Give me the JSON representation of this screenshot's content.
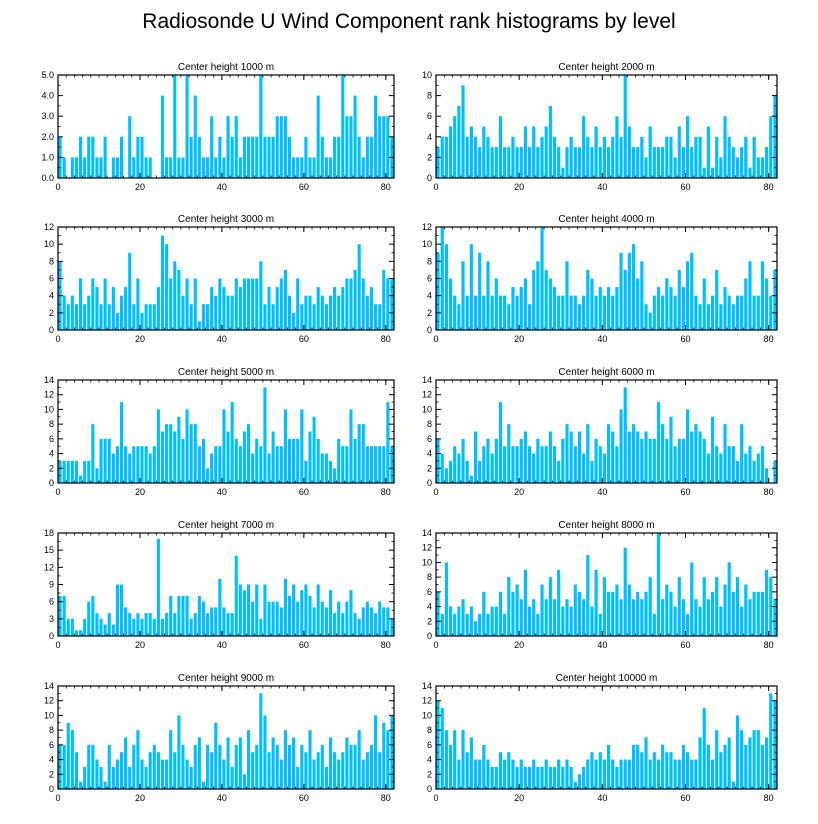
{
  "chart_data": {
    "type": "bar",
    "title": "Radiosonde U Wind Component rank histograms by level",
    "bar_color": "#00BFFF",
    "frame_color": "#000000",
    "x_ticks": [
      0,
      20,
      40,
      60,
      80
    ],
    "x_tick_labels": [
      "0",
      "20",
      "40",
      "60",
      "80"
    ],
    "xlim": [
      0,
      82
    ],
    "panels": [
      {
        "title": "Center height 1000 m",
        "ylim": [
          0,
          5
        ],
        "y_ticks": [
          0,
          1,
          2,
          3,
          4,
          5
        ],
        "y_tick_labels": [
          "0.0",
          "1.0",
          "2.0",
          "3.0",
          "4.0",
          "5.0"
        ],
        "values": [
          2,
          1,
          0,
          1,
          1,
          2,
          1,
          2,
          2,
          1,
          1,
          2,
          0,
          1,
          1,
          2,
          0,
          3,
          1,
          2,
          2,
          1,
          1,
          0,
          0,
          4,
          1,
          1,
          5,
          1,
          1,
          5,
          2,
          4,
          2,
          1,
          1,
          3,
          1,
          2,
          1,
          3,
          2,
          3,
          1,
          2,
          2,
          2,
          2,
          5,
          2,
          2,
          2,
          3,
          3,
          3,
          2,
          1,
          1,
          1,
          2,
          1,
          1,
          4,
          2,
          1,
          1,
          2,
          2,
          5,
          3,
          3,
          4,
          2,
          1,
          2,
          2,
          4,
          3,
          3,
          3,
          2
        ]
      },
      {
        "title": "Center height 2000 m",
        "ylim": [
          0,
          10
        ],
        "y_ticks": [
          0,
          2,
          4,
          6,
          8,
          10
        ],
        "y_tick_labels": [
          "0",
          "2",
          "4",
          "6",
          "8",
          "10"
        ],
        "values": [
          3,
          4,
          4,
          5,
          6,
          7,
          9,
          4,
          5,
          4,
          3,
          5,
          4,
          3,
          3,
          6,
          3,
          3,
          4,
          3,
          3,
          5,
          3,
          5,
          3,
          4,
          5,
          7,
          4,
          3,
          1,
          3,
          4,
          3,
          3,
          6,
          4,
          3,
          5,
          3,
          4,
          3,
          4,
          6,
          4,
          10,
          5,
          3,
          3,
          4,
          2,
          5,
          3,
          3,
          3,
          4,
          4,
          2,
          5,
          3,
          6,
          3,
          4,
          4,
          1,
          5,
          1,
          4,
          2,
          6,
          4,
          3,
          2,
          3,
          4,
          1,
          4,
          2,
          2,
          3,
          6,
          8
        ]
      },
      {
        "title": "Center height 3000 m",
        "ylim": [
          0,
          12
        ],
        "y_ticks": [
          0,
          2,
          4,
          6,
          8,
          10,
          12
        ],
        "y_tick_labels": [
          "0",
          "2",
          "4",
          "6",
          "8",
          "10",
          "12"
        ],
        "values": [
          8,
          4,
          3,
          4,
          3,
          6,
          3,
          4,
          6,
          5,
          3,
          6,
          3,
          5,
          2,
          4,
          5,
          9,
          3,
          6,
          2,
          3,
          3,
          3,
          5,
          11,
          10,
          6,
          8,
          7,
          4,
          6,
          3,
          6,
          1,
          3,
          3,
          5,
          4,
          6,
          5,
          4,
          4,
          6,
          5,
          6,
          6,
          6,
          6,
          8,
          3,
          5,
          3,
          5,
          6,
          7,
          4,
          2,
          6,
          3,
          4,
          4,
          3,
          5,
          4,
          3,
          4,
          5,
          4,
          5,
          6,
          6,
          7,
          10,
          6,
          4,
          5,
          3,
          3,
          7,
          6,
          6
        ]
      },
      {
        "title": "Center height 4000 m",
        "ylim": [
          0,
          12
        ],
        "y_ticks": [
          0,
          2,
          4,
          6,
          8,
          10,
          12
        ],
        "y_tick_labels": [
          "0",
          "2",
          "4",
          "6",
          "8",
          "10",
          "12"
        ],
        "values": [
          9,
          12,
          10,
          6,
          4,
          3,
          8,
          4,
          10,
          4,
          9,
          4,
          8,
          4,
          6,
          4,
          4,
          3,
          5,
          4,
          5,
          6,
          3,
          7,
          8,
          12,
          7,
          6,
          5,
          4,
          4,
          8,
          4,
          4,
          3,
          4,
          7,
          6,
          4,
          5,
          4,
          5,
          4,
          5,
          9,
          7,
          9,
          10,
          6,
          8,
          3,
          2,
          4,
          5,
          4,
          6,
          5,
          4,
          7,
          5,
          8,
          9,
          4,
          3,
          6,
          3,
          4,
          7,
          3,
          5,
          4,
          3,
          4,
          4,
          6,
          8,
          4,
          4,
          8,
          6,
          4,
          7
        ]
      },
      {
        "title": "Center height 5000 m",
        "ylim": [
          0,
          14
        ],
        "y_ticks": [
          0,
          2,
          4,
          6,
          8,
          10,
          12,
          14
        ],
        "y_tick_labels": [
          "0",
          "2",
          "4",
          "6",
          "8",
          "10",
          "12",
          "14"
        ],
        "values": [
          3,
          3,
          3,
          3,
          3,
          1,
          3,
          3,
          8,
          2,
          6,
          6,
          6,
          4,
          5,
          11,
          5,
          4,
          5,
          5,
          5,
          5,
          4,
          5,
          10,
          7,
          8,
          8,
          7,
          9,
          6,
          10,
          8,
          8,
          5,
          6,
          2,
          4,
          5,
          5,
          10,
          7,
          11,
          6,
          5,
          7,
          8,
          4,
          6,
          5,
          13,
          4,
          7,
          5,
          5,
          10,
          6,
          6,
          6,
          10,
          3,
          7,
          9,
          6,
          4,
          4,
          3,
          2,
          6,
          5,
          5,
          10,
          6,
          8,
          8,
          5,
          5,
          5,
          5,
          5,
          11,
          5
        ]
      },
      {
        "title": "Center height 6000 m",
        "ylim": [
          0,
          14
        ],
        "y_ticks": [
          0,
          2,
          4,
          6,
          8,
          10,
          12,
          14
        ],
        "y_tick_labels": [
          "0",
          "2",
          "4",
          "6",
          "8",
          "10",
          "12",
          "14"
        ],
        "values": [
          6,
          4,
          2,
          3,
          5,
          4,
          6,
          3,
          1,
          7,
          3,
          5,
          6,
          4,
          6,
          11,
          5,
          8,
          5,
          5,
          6,
          7,
          5,
          4,
          6,
          5,
          5,
          7,
          5,
          3,
          6,
          8,
          7,
          5,
          7,
          4,
          8,
          3,
          6,
          5,
          4,
          8,
          7,
          5,
          10,
          13,
          7,
          8,
          7,
          6,
          7,
          6,
          6,
          11,
          8,
          6,
          9,
          5,
          6,
          6,
          10,
          7,
          8,
          7,
          6,
          4,
          9,
          5,
          4,
          8,
          5,
          5,
          3,
          8,
          4,
          5,
          3,
          4,
          5,
          2,
          0,
          3
        ]
      },
      {
        "title": "Center height 7000 m",
        "ylim": [
          0,
          18
        ],
        "y_ticks": [
          0,
          3,
          6,
          9,
          12,
          15,
          18
        ],
        "y_tick_labels": [
          "0",
          "3",
          "6",
          "9",
          "12",
          "15",
          "18"
        ],
        "values": [
          7,
          7,
          3,
          3,
          1,
          1,
          3,
          6,
          7,
          4,
          3,
          2,
          4,
          2,
          9,
          9,
          5,
          4,
          3,
          4,
          3,
          4,
          4,
          3,
          17,
          3,
          4,
          7,
          4,
          7,
          7,
          7,
          3,
          4,
          7,
          6,
          4,
          5,
          5,
          10,
          5,
          4,
          4,
          14,
          9,
          8,
          9,
          6,
          9,
          3,
          9,
          6,
          6,
          6,
          5,
          10,
          7,
          9,
          6,
          8,
          9,
          7,
          5,
          9,
          6,
          5,
          8,
          4,
          6,
          4,
          6,
          8,
          4,
          3,
          5,
          6,
          5,
          4,
          6,
          5,
          5,
          3
        ]
      },
      {
        "title": "Center height 8000 m",
        "ylim": [
          0,
          14
        ],
        "y_ticks": [
          0,
          2,
          4,
          6,
          8,
          10,
          12,
          14
        ],
        "y_tick_labels": [
          "0",
          "2",
          "4",
          "6",
          "8",
          "10",
          "12",
          "14"
        ],
        "values": [
          6,
          3,
          10,
          4,
          3,
          4,
          5,
          3,
          4,
          2,
          3,
          6,
          3,
          4,
          4,
          6,
          3,
          8,
          6,
          7,
          5,
          9,
          4,
          5,
          3,
          7,
          5,
          8,
          5,
          9,
          4,
          5,
          4,
          7,
          6,
          5,
          11,
          4,
          9,
          3,
          8,
          6,
          6,
          7,
          5,
          12,
          7,
          5,
          6,
          5,
          6,
          8,
          3,
          14,
          5,
          7,
          6,
          4,
          8,
          5,
          3,
          10,
          5,
          4,
          8,
          5,
          6,
          8,
          4,
          7,
          10,
          6,
          8,
          4,
          7,
          5,
          6,
          6,
          6,
          9,
          8,
          5
        ]
      },
      {
        "title": "Center height 9000 m",
        "ylim": [
          0,
          14
        ],
        "y_ticks": [
          0,
          2,
          4,
          6,
          8,
          10,
          12,
          14
        ],
        "y_tick_labels": [
          "0",
          "2",
          "4",
          "6",
          "8",
          "10",
          "12",
          "14"
        ],
        "values": [
          6,
          6,
          9,
          8,
          5,
          1,
          3,
          6,
          6,
          4,
          3,
          1,
          6,
          3,
          4,
          5,
          7,
          3,
          6,
          8,
          4,
          3,
          5,
          6,
          5,
          4,
          4,
          8,
          5,
          10,
          6,
          4,
          3,
          6,
          7,
          1,
          6,
          5,
          9,
          6,
          4,
          7,
          3,
          6,
          7,
          2,
          8,
          5,
          6,
          13,
          10,
          5,
          7,
          6,
          4,
          8,
          6,
          7,
          3,
          6,
          5,
          8,
          4,
          5,
          6,
          3,
          7,
          5,
          4,
          5,
          7,
          6,
          6,
          8,
          4,
          5,
          6,
          10,
          5,
          9,
          8,
          10
        ]
      },
      {
        "title": "Center height 10000 m",
        "ylim": [
          0,
          14
        ],
        "y_ticks": [
          0,
          2,
          4,
          6,
          8,
          10,
          12,
          14
        ],
        "y_tick_labels": [
          "0",
          "2",
          "4",
          "6",
          "8",
          "10",
          "12",
          "14"
        ],
        "values": [
          12,
          11,
          8,
          6,
          8,
          4,
          8,
          5,
          7,
          4,
          4,
          6,
          4,
          3,
          3,
          5,
          4,
          5,
          4,
          3,
          4,
          3,
          3,
          4,
          3,
          3,
          4,
          3,
          3,
          4,
          3,
          4,
          3,
          1,
          2,
          3,
          4,
          5,
          4,
          5,
          4,
          6,
          4,
          3,
          4,
          4,
          4,
          6,
          6,
          5,
          7,
          4,
          5,
          4,
          6,
          5,
          5,
          4,
          4,
          6,
          5,
          4,
          4,
          7,
          11,
          6,
          4,
          8,
          5,
          6,
          7,
          1,
          10,
          8,
          6,
          7,
          8,
          8,
          6,
          7,
          13,
          12
        ]
      }
    ]
  }
}
